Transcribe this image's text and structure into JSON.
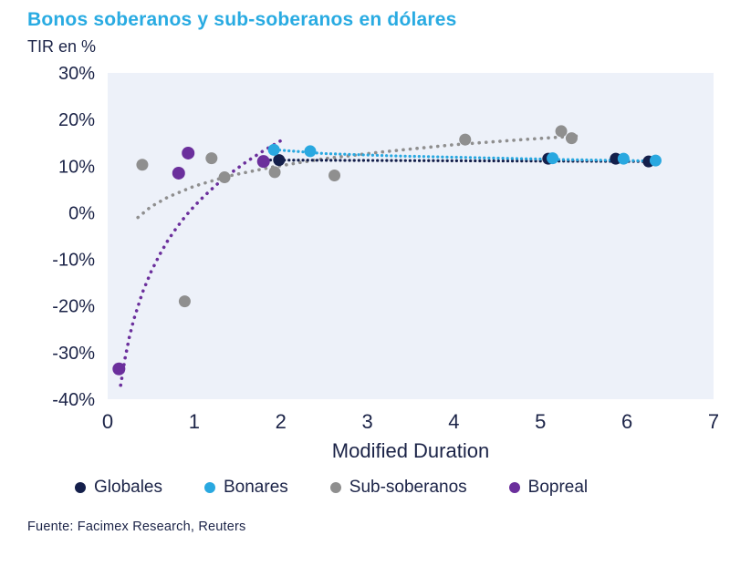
{
  "header": {
    "title": "Bonos soberanos y sub-soberanos en dólares",
    "subtitle": "TIR en %"
  },
  "footer": {
    "source": "Fuente: Facimex Research, Reuters"
  },
  "chart_data": {
    "type": "scatter",
    "title": "Bonos soberanos y sub-soberanos en dólares",
    "ylabel": "TIR en %",
    "xlabel": "Modified Duration",
    "xlim": [
      0,
      7
    ],
    "ylim": [
      -40,
      30
    ],
    "grid": false,
    "legend_position": "bottom",
    "plot_bg": "#edf1f9",
    "axis_text_color": "#1b2347",
    "title_color": "#29abe2",
    "x_ticks": [
      {
        "v": 0,
        "label": "0"
      },
      {
        "v": 1,
        "label": "1"
      },
      {
        "v": 2,
        "label": "2"
      },
      {
        "v": 3,
        "label": "3"
      },
      {
        "v": 4,
        "label": "4"
      },
      {
        "v": 5,
        "label": "5"
      },
      {
        "v": 6,
        "label": "6"
      },
      {
        "v": 7,
        "label": "7"
      }
    ],
    "y_ticks": [
      {
        "v": 30,
        "label": "30%"
      },
      {
        "v": 20,
        "label": "20%"
      },
      {
        "v": 10,
        "label": "10%"
      },
      {
        "v": 0,
        "label": "0%"
      },
      {
        "v": -10,
        "label": "-10%"
      },
      {
        "v": -20,
        "label": "-20%"
      },
      {
        "v": -30,
        "label": "-30%"
      },
      {
        "v": -40,
        "label": "-40%"
      }
    ],
    "series": [
      {
        "name": "Globales",
        "color": "#141f4b",
        "marker_radius": 6.5,
        "trend_width": 3.2,
        "trend_gap": 5,
        "points": [
          [
            1.98,
            11.3
          ],
          [
            5.09,
            11.6
          ],
          [
            5.87,
            11.6
          ],
          [
            6.25,
            11.0
          ]
        ],
        "trend": [
          [
            1.88,
            11.3
          ],
          [
            6.33,
            11.0
          ]
        ]
      },
      {
        "name": "Bonares",
        "color": "#29a8e0",
        "marker_radius": 6.5,
        "trend_width": 3.2,
        "trend_gap": 5,
        "points": [
          [
            1.92,
            13.5
          ],
          [
            2.34,
            13.2
          ],
          [
            5.14,
            11.7
          ],
          [
            5.96,
            11.6
          ],
          [
            6.33,
            11.2
          ]
        ],
        "trend": [
          [
            1.88,
            13.6
          ],
          [
            2.5,
            12.7
          ],
          [
            3.3,
            12.2
          ],
          [
            4.3,
            11.8
          ],
          [
            5.3,
            11.4
          ],
          [
            6.33,
            11.1
          ]
        ]
      },
      {
        "name": "Sub-soberanos",
        "color": "#8f8f8f",
        "marker_radius": 6.5,
        "trend_width": 3.6,
        "trend_gap": 7.5,
        "points": [
          [
            0.4,
            10.3
          ],
          [
            0.89,
            -19.0
          ],
          [
            1.2,
            11.7
          ],
          [
            1.35,
            7.6
          ],
          [
            1.93,
            8.7
          ],
          [
            2.62,
            8.0
          ],
          [
            4.13,
            15.7
          ],
          [
            5.24,
            17.5
          ],
          [
            5.36,
            16.0
          ]
        ],
        "trend": [
          [
            0.35,
            -1.0
          ],
          [
            0.5,
            1.3
          ],
          [
            0.7,
            3.4
          ],
          [
            1.0,
            5.7
          ],
          [
            1.4,
            7.9
          ],
          [
            1.9,
            9.8
          ],
          [
            2.5,
            11.6
          ],
          [
            3.2,
            13.1
          ],
          [
            4.0,
            14.6
          ],
          [
            4.8,
            15.7
          ],
          [
            5.45,
            16.5
          ]
        ]
      },
      {
        "name": "Bopreal",
        "color": "#6b2f9c",
        "marker_radius": 7,
        "trend_width": 3.6,
        "trend_gap": 7.5,
        "points": [
          [
            0.13,
            -33.5
          ],
          [
            0.82,
            8.5
          ],
          [
            0.93,
            12.8
          ],
          [
            1.8,
            11.0
          ]
        ],
        "trend": [
          [
            0.15,
            -37.0
          ],
          [
            0.2,
            -31.3
          ],
          [
            0.25,
            -26.7
          ],
          [
            0.3,
            -23.0
          ],
          [
            0.4,
            -17.2
          ],
          [
            0.5,
            -12.7
          ],
          [
            0.6,
            -9.0
          ],
          [
            0.7,
            -5.8
          ],
          [
            0.8,
            -3.1
          ],
          [
            0.9,
            -0.7
          ],
          [
            1.0,
            1.4
          ],
          [
            1.1,
            3.3
          ],
          [
            1.25,
            5.9
          ],
          [
            1.4,
            8.2
          ],
          [
            1.6,
            10.9
          ],
          [
            1.8,
            13.3
          ],
          [
            2.05,
            16.0
          ]
        ]
      }
    ]
  }
}
